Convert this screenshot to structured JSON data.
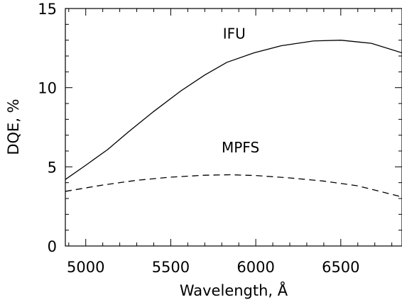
{
  "chart_data": {
    "type": "line",
    "xlabel": "Wavelength, Å",
    "ylabel": "DQE, %",
    "xlim": [
      4880,
      6860
    ],
    "ylim": [
      0,
      15
    ],
    "x_ticks": [
      5000,
      5500,
      6000,
      6500
    ],
    "y_ticks": [
      0,
      5,
      10,
      15
    ],
    "grid": false,
    "series": [
      {
        "name": "IFU",
        "line_style": "solid",
        "color": "#000000",
        "x": [
          4880,
          5000,
          5130,
          5250,
          5400,
          5560,
          5700,
          5830,
          5990,
          6150,
          6340,
          6500,
          6680,
          6860
        ],
        "y": [
          4.2,
          5.1,
          6.1,
          7.2,
          8.5,
          9.8,
          10.8,
          11.6,
          12.2,
          12.65,
          12.95,
          13.0,
          12.8,
          12.2
        ]
      },
      {
        "name": "MPFS",
        "line_style": "dashed",
        "color": "#000000",
        "x": [
          4880,
          5100,
          5300,
          5500,
          5700,
          5850,
          6000,
          6200,
          6400,
          6600,
          6860
        ],
        "y": [
          3.45,
          3.85,
          4.15,
          4.35,
          4.47,
          4.5,
          4.45,
          4.3,
          4.1,
          3.8,
          3.1
        ]
      }
    ]
  }
}
